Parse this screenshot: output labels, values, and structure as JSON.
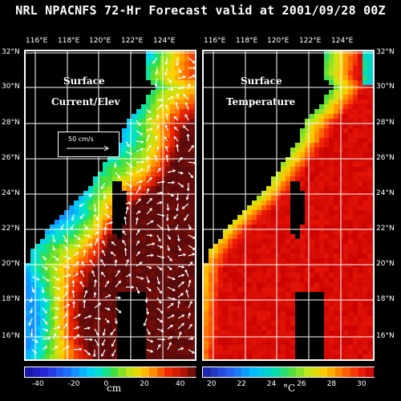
{
  "title": "NRL NPACNFS 72-Hr Forecast valid at 2001/09/28 00Z",
  "lon_labels": [
    "116°E",
    "118°E",
    "120°E",
    "122°E",
    "124°E"
  ],
  "lat_labels": [
    "32°N",
    "30°N",
    "28°N",
    "26°N",
    "24°N",
    "22°N",
    "20°N",
    "18°N",
    "16°N"
  ],
  "panels": {
    "left": {
      "label_line1": "Surface",
      "label_line2": "Current/Elev",
      "scale_label": "50 cm/s"
    },
    "right": {
      "label_line1": "Surface",
      "label_line2": "Temperature"
    }
  },
  "colorbars": {
    "left": {
      "ticks": [
        "-40",
        "-20",
        "0",
        "20",
        "40"
      ],
      "unit": "cm"
    },
    "right": {
      "ticks": [
        "20",
        "22",
        "24",
        "26",
        "28",
        "30"
      ],
      "unit": "°C"
    }
  },
  "colors": {
    "land": "#000000",
    "grid": "#ffffff"
  }
}
